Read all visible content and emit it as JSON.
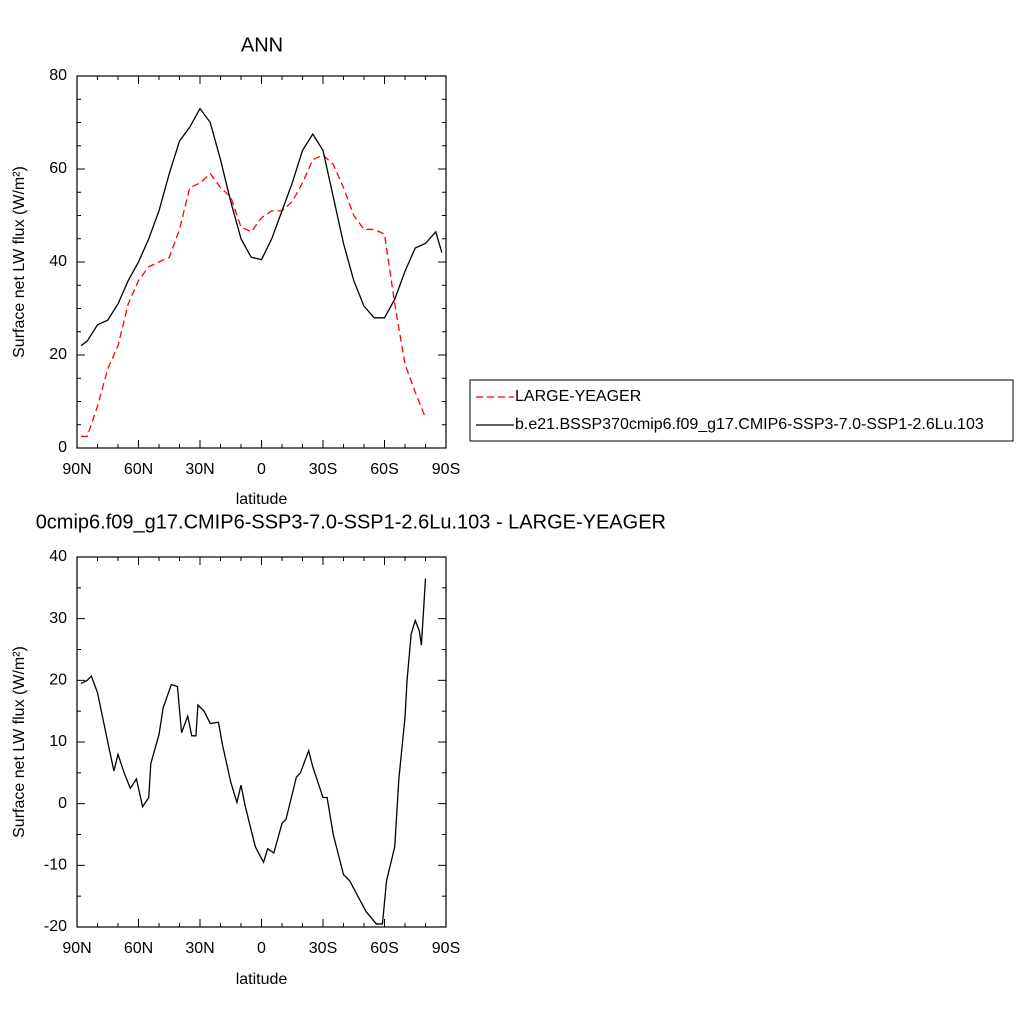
{
  "chart_data": [
    {
      "type": "line",
      "title": "ANN",
      "xlabel": "latitude",
      "ylabel": "Surface net LW flux (W/m²)",
      "x": [
        88,
        85,
        80,
        75,
        70,
        65,
        60,
        55,
        50,
        45,
        40,
        35,
        30,
        25,
        20,
        15,
        10,
        5,
        0,
        -5,
        -10,
        -15,
        -20,
        -25,
        -30,
        -35,
        -40,
        -45,
        -50,
        -55,
        -60,
        -65,
        -70,
        -75,
        -80,
        -85,
        -88
      ],
      "series": [
        {
          "name": "LARGE-YEAGER",
          "color": "#ff0000",
          "line_style": "dashed",
          "values": [
            2.5,
            2.5,
            9,
            17,
            22,
            31,
            36,
            39,
            40,
            41,
            47,
            56,
            57,
            59,
            56,
            54,
            47.5,
            46.5,
            49.5,
            51,
            51,
            53,
            57,
            62,
            63,
            61,
            56,
            50,
            47,
            47,
            46,
            31,
            18,
            12,
            6.5,
            null,
            null
          ]
        },
        {
          "name": "b.e21.BSSP370cmip6.f09_g17.CMIP6-SSP3-7.0-SSP1-2.6Lu.103",
          "color": "#000000",
          "line_style": "solid",
          "values": [
            22,
            23,
            26.5,
            27.5,
            31,
            36,
            40,
            45,
            51,
            59,
            66,
            69,
            73,
            70,
            62,
            53,
            45,
            41,
            40.5,
            45,
            51,
            57,
            64,
            67.5,
            64,
            54,
            44,
            36,
            30.5,
            28,
            28,
            32,
            38,
            43,
            44,
            46.5,
            42
          ]
        }
      ],
      "xlim": [
        90,
        -90
      ],
      "xticks": [
        {
          "value": 90,
          "label": "90N"
        },
        {
          "value": 60,
          "label": "60N"
        },
        {
          "value": 30,
          "label": "30N"
        },
        0,
        {
          "value": -30,
          "label": "30S"
        },
        {
          "value": -60,
          "label": "60S"
        },
        {
          "value": -90,
          "label": "90S"
        }
      ],
      "ylim": [
        0,
        80
      ],
      "yticks": [
        0,
        20,
        40,
        60,
        80
      ],
      "legend": "right"
    },
    {
      "type": "line",
      "title": "0cmip6.f09_g17.CMIP6-SSP3-7.0-SSP1-2.6Lu.103 - LARGE-YEAGER",
      "xlabel": "latitude",
      "ylabel": "Surface net LW flux (W/m²)",
      "x": [
        88,
        85,
        83,
        80,
        75,
        72,
        70,
        67,
        64,
        61,
        58,
        55,
        54,
        50,
        48,
        44,
        41,
        39,
        36,
        34,
        32,
        31,
        28,
        25,
        21,
        19,
        15,
        12,
        10,
        8,
        6,
        3,
        -1,
        -3,
        -6,
        -10,
        -12,
        -17,
        -19,
        -23,
        -25,
        -28,
        -30,
        -32,
        -35,
        -40,
        -43,
        -47,
        -51,
        -56,
        -59,
        -61,
        -65,
        -67,
        -70,
        -71,
        -73,
        -75,
        -77,
        -78,
        -80
      ],
      "values": [
        19.5,
        20,
        20.7,
        18,
        10,
        5.3,
        8,
        5,
        2.5,
        4,
        -0.5,
        1,
        6.5,
        11.2,
        15.5,
        19.3,
        19,
        11.5,
        14.2,
        11,
        11,
        16,
        15,
        13,
        13.2,
        9.5,
        3.5,
        0.2,
        3,
        -0.3,
        -3,
        -7,
        -9.5,
        -7.3,
        -8,
        -3.2,
        -2.5,
        4.3,
        5,
        8.6,
        6,
        3,
        1,
        1,
        -5,
        -11.5,
        -12.5,
        -15,
        -17.5,
        -19.5,
        -19.5,
        -12.5,
        -7,
        4,
        14,
        20,
        27.5,
        29.7,
        28,
        25.7,
        36.5
      ],
      "color": "#000000",
      "line_style": "solid",
      "xlim": [
        90,
        -90
      ],
      "xticks": [
        {
          "value": 90,
          "label": "90N"
        },
        {
          "value": 60,
          "label": "60N"
        },
        {
          "value": 30,
          "label": "30N"
        },
        0,
        {
          "value": -30,
          "label": "30S"
        },
        {
          "value": -60,
          "label": "60S"
        },
        {
          "value": -90,
          "label": "90S"
        }
      ],
      "ylim": [
        -20,
        40
      ],
      "yticks": [
        -20,
        -10,
        0,
        10,
        20,
        30,
        40
      ]
    }
  ]
}
